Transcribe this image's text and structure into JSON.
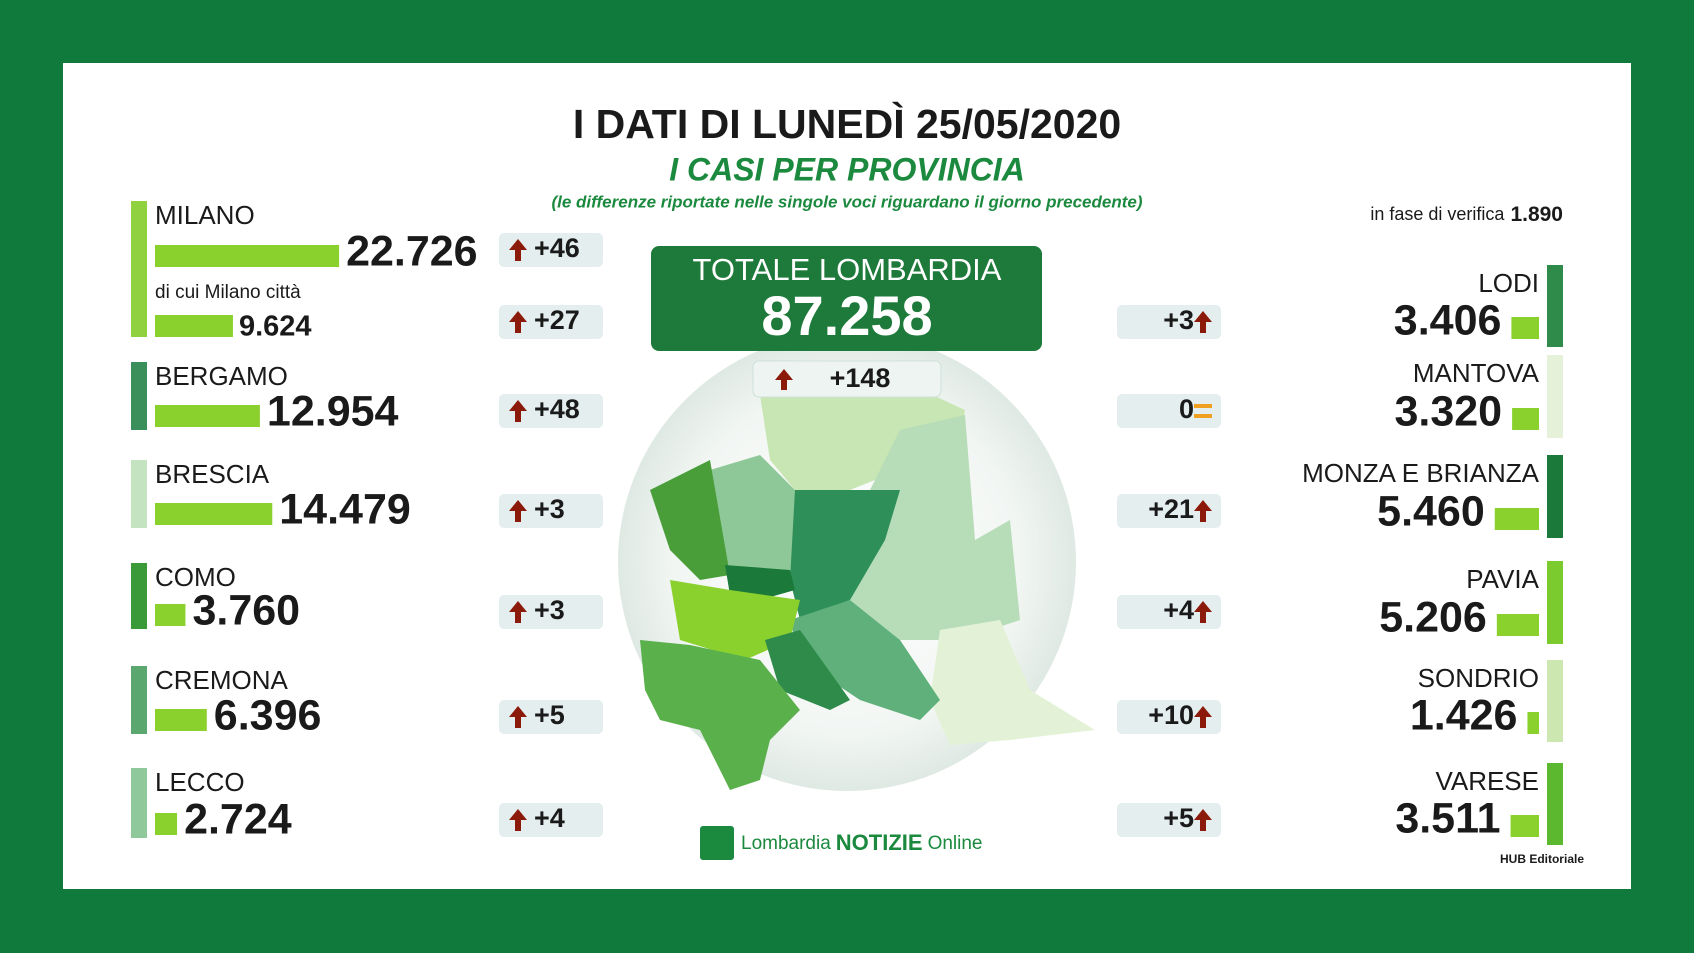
{
  "header": {
    "title": "I DATI DI LUNEDÌ 25/05/2020",
    "subtitle": "I CASI PER PROVINCIA",
    "note": "(le differenze riportate nelle singole voci riguardano il giorno precedente)",
    "pending_label": "in fase di verifica",
    "pending_value": "1.890"
  },
  "total": {
    "label": "TOTALE LOMBARDIA",
    "value": "87.258",
    "change": "+148",
    "trend": "up"
  },
  "left": [
    {
      "name": "MILANO",
      "cases": 22726,
      "cases_label": "22.726",
      "change": "+46",
      "trend": "up",
      "color": "#8fd13f",
      "detail": {
        "name": "di cui Milano città",
        "cases": 9624,
        "cases_label": "9.624",
        "change": "+27",
        "trend": "up"
      }
    },
    {
      "name": "BERGAMO",
      "cases": 12954,
      "cases_label": "12.954",
      "change": "+48",
      "trend": "up",
      "color": "#3a8f5a"
    },
    {
      "name": "BRESCIA",
      "cases": 14479,
      "cases_label": "14.479",
      "change": "+3",
      "trend": "up",
      "color": "#c4e3c0"
    },
    {
      "name": "COMO",
      "cases": 3760,
      "cases_label": "3.760",
      "change": "+3",
      "trend": "up",
      "color": "#3a9a3a"
    },
    {
      "name": "CREMONA",
      "cases": 6396,
      "cases_label": "6.396",
      "change": "+5",
      "trend": "up",
      "color": "#5aa870"
    },
    {
      "name": "LECCO",
      "cases": 2724,
      "cases_label": "2.724",
      "change": "+4",
      "trend": "up",
      "color": "#8fc89a"
    }
  ],
  "right": [
    {
      "name": "LODI",
      "cases": 3406,
      "cases_label": "3.406",
      "change": "+3",
      "trend": "up",
      "color": "#2e8b4a"
    },
    {
      "name": "MANTOVA",
      "cases": 3320,
      "cases_label": "3.320",
      "change": "0",
      "trend": "equal",
      "color": "#e5f2d9"
    },
    {
      "name": "MONZA E BRIANZA",
      "cases": 5460,
      "cases_label": "5.460",
      "change": "+21",
      "trend": "up",
      "color": "#1b7a3a"
    },
    {
      "name": "PAVIA",
      "cases": 5206,
      "cases_label": "5.206",
      "change": "+4",
      "trend": "up",
      "color": "#7ccb2e"
    },
    {
      "name": "SONDRIO",
      "cases": 1426,
      "cases_label": "1.426",
      "change": "+10",
      "trend": "up",
      "color": "#cce8b0"
    },
    {
      "name": "VARESE",
      "cases": 3511,
      "cases_label": "3.511",
      "change": "+5",
      "trend": "up",
      "color": "#5cb82e"
    }
  ],
  "footer": {
    "brand_prefix": "Lombardia",
    "brand_main": "NOTIZIE",
    "brand_suffix": "Online",
    "credit": "HUB Editoriale"
  }
}
